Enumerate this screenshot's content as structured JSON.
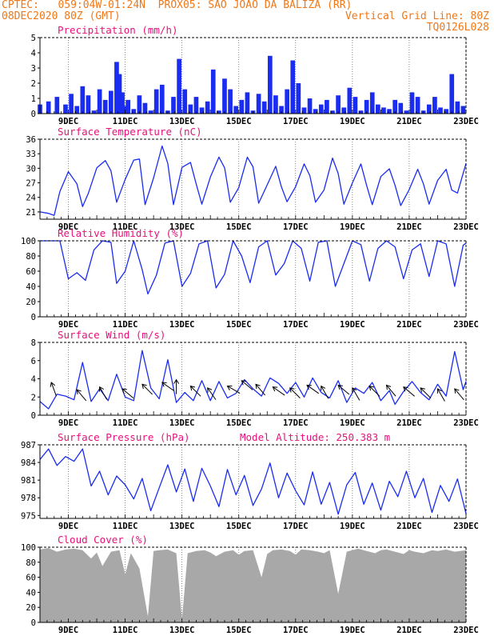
{
  "header": {
    "line1": "CPTEC:   059:04W-01:24N  PROX05: SAO JOAO DA BALIZA (RR)",
    "line2_left": "08DEC2020 80Z (GMT)",
    "line2_right": "Vertical Grid Line: 80Z",
    "line3_right": "TQ0126L028"
  },
  "colors": {
    "header": "#f07818",
    "title": "#e8107a",
    "series": "#1a2cf0",
    "cloud": "#a8a8a8"
  },
  "chart_data": [
    {
      "id": "precip",
      "type": "bar",
      "title": "Precipitation (mm/h)",
      "x_ticks": [
        "9DEC",
        "11DEC",
        "13DEC",
        "15DEC",
        "17DEC",
        "19DEC",
        "21DEC",
        "23DEC"
      ],
      "ylim": [
        0,
        5
      ],
      "yticks": [
        0,
        1,
        2,
        3,
        4,
        5
      ],
      "x_days": [
        0.0,
        0.3,
        0.6,
        0.9,
        1.1,
        1.3,
        1.5,
        1.7,
        1.9,
        2.1,
        2.3,
        2.5,
        2.7,
        2.8,
        2.9,
        3.0,
        3.1,
        3.3,
        3.5,
        3.7,
        3.9,
        4.1,
        4.3,
        4.5,
        4.7,
        4.9,
        5.1,
        5.3,
        5.5,
        5.7,
        5.9,
        6.1,
        6.3,
        6.5,
        6.7,
        6.9,
        7.1,
        7.3,
        7.5,
        7.7,
        7.9,
        8.1,
        8.3,
        8.5,
        8.7,
        8.9,
        9.1,
        9.3,
        9.5,
        9.7,
        9.9,
        10.1,
        10.3,
        10.5,
        10.7,
        10.9,
        11.1,
        11.3,
        11.5,
        11.7,
        11.9,
        12.1,
        12.3,
        12.5,
        12.7,
        12.9,
        13.1,
        13.3,
        13.5,
        13.7,
        13.9,
        14.1,
        14.3,
        14.5,
        14.7,
        14.9
      ],
      "values": [
        0.6,
        0.8,
        1.1,
        0.6,
        1.3,
        0.5,
        1.8,
        1.2,
        0.2,
        1.6,
        0.9,
        1.5,
        3.4,
        2.6,
        1.4,
        0.5,
        0.9,
        0.3,
        1.2,
        0.7,
        0.2,
        1.6,
        1.9,
        0.2,
        1.1,
        3.6,
        1.6,
        0.6,
        1.1,
        0.4,
        0.8,
        2.9,
        0.2,
        2.3,
        1.6,
        0.5,
        0.9,
        1.4,
        0.2,
        1.3,
        0.8,
        3.8,
        1.2,
        0.5,
        1.6,
        3.5,
        2.0,
        0.4,
        1.0,
        0.3,
        0.6,
        0.9,
        0.2,
        1.2,
        0.4,
        1.7,
        1.1,
        0.2,
        0.9,
        1.4,
        0.6,
        0.4,
        0.3,
        0.9,
        0.7,
        0.2,
        1.4,
        1.1,
        0.2,
        0.6,
        1.1,
        0.4,
        0.3,
        2.6,
        0.8,
        0.5
      ]
    },
    {
      "id": "temp",
      "type": "line",
      "title": "Surface Temperature (nC)",
      "x_ticks": [
        "9DEC",
        "11DEC",
        "13DEC",
        "15DEC",
        "17DEC",
        "19DEC",
        "21DEC",
        "23DEC"
      ],
      "ylim": [
        19.5,
        36
      ],
      "yticks": [
        21,
        24,
        27,
        30,
        33,
        36
      ],
      "x_days": [
        0.0,
        0.3,
        0.5,
        0.7,
        1.0,
        1.3,
        1.5,
        1.7,
        2.0,
        2.3,
        2.5,
        2.7,
        3.0,
        3.3,
        3.5,
        3.7,
        4.0,
        4.3,
        4.5,
        4.7,
        5.0,
        5.3,
        5.5,
        5.7,
        6.0,
        6.3,
        6.5,
        6.7,
        7.0,
        7.3,
        7.5,
        7.7,
        8.0,
        8.3,
        8.5,
        8.7,
        9.0,
        9.3,
        9.5,
        9.7,
        10.0,
        10.3,
        10.5,
        10.7,
        11.0,
        11.3,
        11.5,
        11.7,
        12.0,
        12.3,
        12.5,
        12.7,
        13.0,
        13.3,
        13.5,
        13.7,
        14.0,
        14.3,
        14.5,
        14.7,
        15.0
      ],
      "values": [
        21.0,
        20.7,
        20.3,
        25.2,
        29.3,
        26.8,
        22.1,
        24.8,
        30.1,
        31.6,
        29.5,
        23.0,
        27.7,
        31.7,
        31.9,
        22.5,
        28.0,
        34.6,
        31.0,
        22.5,
        30.2,
        31.2,
        26.8,
        22.6,
        28.2,
        32.3,
        30.1,
        23.0,
        26.0,
        32.3,
        30.3,
        22.8,
        26.6,
        30.4,
        26.2,
        23.1,
        26.2,
        30.9,
        28.5,
        23.0,
        25.5,
        32.1,
        28.9,
        22.6,
        27.0,
        30.9,
        26.5,
        22.5,
        28.3,
        29.9,
        26.5,
        22.3,
        25.6,
        29.8,
        26.8,
        22.6,
        27.5,
        29.8,
        25.5,
        24.9,
        31.0
      ]
    },
    {
      "id": "rh",
      "type": "line",
      "title": "Relative Humidity (%)",
      "x_ticks": [
        "9DEC",
        "11DEC",
        "13DEC",
        "15DEC",
        "17DEC",
        "19DEC",
        "21DEC",
        "23DEC"
      ],
      "ylim": [
        0,
        100
      ],
      "yticks": [
        0,
        20,
        40,
        60,
        80,
        100
      ],
      "x_days": [
        0.0,
        0.4,
        0.7,
        1.0,
        1.3,
        1.6,
        1.9,
        2.2,
        2.5,
        2.7,
        3.0,
        3.3,
        3.6,
        3.8,
        4.1,
        4.4,
        4.7,
        5.0,
        5.3,
        5.6,
        5.9,
        6.2,
        6.5,
        6.8,
        7.1,
        7.4,
        7.7,
        8.0,
        8.3,
        8.6,
        8.9,
        9.2,
        9.5,
        9.8,
        10.1,
        10.4,
        10.7,
        11.0,
        11.3,
        11.6,
        11.9,
        12.2,
        12.5,
        12.8,
        13.1,
        13.4,
        13.7,
        14.0,
        14.3,
        14.6,
        14.9,
        15.0
      ],
      "values": [
        100,
        100,
        100,
        50,
        58,
        48,
        88,
        100,
        98,
        44,
        60,
        100,
        62,
        30,
        55,
        97,
        100,
        40,
        57,
        96,
        100,
        38,
        56,
        100,
        80,
        45,
        92,
        100,
        55,
        70,
        100,
        90,
        47,
        98,
        100,
        40,
        70,
        100,
        95,
        47,
        90,
        100,
        92,
        50,
        88,
        96,
        53,
        100,
        96,
        40,
        94,
        97
      ]
    },
    {
      "id": "wind",
      "type": "line",
      "title": "Surface Wind (m/s)",
      "x_ticks": [
        "9DEC",
        "11DEC",
        "13DEC",
        "15DEC",
        "17DEC",
        "19DEC",
        "21DEC",
        "23DEC"
      ],
      "ylim": [
        0,
        8
      ],
      "yticks": [
        0,
        2,
        4,
        6,
        8
      ],
      "x_days": [
        0.0,
        0.3,
        0.6,
        0.9,
        1.2,
        1.5,
        1.8,
        2.1,
        2.4,
        2.7,
        3.0,
        3.3,
        3.6,
        3.9,
        4.2,
        4.5,
        4.8,
        5.1,
        5.4,
        5.7,
        6.0,
        6.3,
        6.6,
        6.9,
        7.2,
        7.5,
        7.8,
        8.1,
        8.4,
        8.7,
        9.0,
        9.3,
        9.6,
        9.9,
        10.2,
        10.5,
        10.8,
        11.1,
        11.4,
        11.7,
        12.0,
        12.3,
        12.5,
        12.8,
        13.1,
        13.4,
        13.7,
        14.0,
        14.3,
        14.6,
        14.9,
        15.0
      ],
      "values": [
        1.5,
        0.7,
        2.3,
        2.1,
        1.7,
        5.8,
        1.5,
        2.9,
        1.6,
        4.5,
        2.0,
        1.6,
        7.1,
        3.0,
        1.8,
        6.1,
        1.4,
        2.5,
        1.6,
        3.8,
        1.6,
        3.7,
        1.9,
        2.4,
        3.9,
        2.9,
        2.1,
        4.1,
        3.5,
        2.4,
        3.6,
        2.0,
        4.1,
        2.5,
        1.9,
        3.8,
        1.4,
        3.0,
        2.4,
        3.6,
        1.6,
        2.7,
        1.2,
        2.6,
        3.7,
        2.5,
        1.7,
        3.4,
        2.1,
        7.0,
        2.8,
        3.7
      ],
      "arrows": [
        [
          0.4,
          3.6,
          -70
        ],
        [
          1.3,
          2.8,
          -50
        ],
        [
          2.1,
          3.1,
          -60
        ],
        [
          2.9,
          2.9,
          -40
        ],
        [
          3.6,
          3.4,
          -45
        ],
        [
          4.3,
          3.6,
          -35
        ],
        [
          4.8,
          3.9,
          -90
        ],
        [
          5.3,
          3.2,
          -45
        ],
        [
          5.9,
          3.0,
          -55
        ],
        [
          6.6,
          3.2,
          -30
        ],
        [
          7.1,
          3.8,
          -40
        ],
        [
          7.6,
          3.4,
          -50
        ],
        [
          8.2,
          3.1,
          -35
        ],
        [
          8.8,
          3.0,
          -45
        ],
        [
          9.4,
          3.3,
          -35
        ],
        [
          9.9,
          3.2,
          -60
        ],
        [
          10.5,
          3.3,
          -40
        ],
        [
          11.0,
          3.0,
          -60
        ],
        [
          11.6,
          3.2,
          -45
        ],
        [
          12.2,
          3.3,
          -50
        ],
        [
          12.8,
          3.1,
          -40
        ],
        [
          13.4,
          3.0,
          -45
        ],
        [
          14.0,
          2.9,
          -60
        ],
        [
          14.6,
          2.9,
          -50
        ]
      ]
    },
    {
      "id": "pres",
      "type": "line",
      "title": "Surface Pressure (hPa)",
      "annotation": "Model Altitude: 250.383 m",
      "x_ticks": [
        "9DEC",
        "11DEC",
        "13DEC",
        "15DEC",
        "17DEC",
        "19DEC",
        "21DEC",
        "23DEC"
      ],
      "ylim": [
        974.5,
        987
      ],
      "yticks": [
        975,
        978,
        981,
        984,
        987
      ],
      "x_days": [
        0.0,
        0.3,
        0.6,
        0.9,
        1.2,
        1.5,
        1.8,
        2.1,
        2.4,
        2.7,
        3.0,
        3.3,
        3.6,
        3.9,
        4.2,
        4.5,
        4.8,
        5.1,
        5.4,
        5.7,
        6.0,
        6.3,
        6.6,
        6.9,
        7.2,
        7.5,
        7.8,
        8.1,
        8.4,
        8.7,
        9.0,
        9.3,
        9.6,
        9.9,
        10.2,
        10.5,
        10.8,
        11.1,
        11.4,
        11.7,
        12.0,
        12.3,
        12.6,
        12.9,
        13.2,
        13.5,
        13.8,
        14.1,
        14.4,
        14.7,
        15.0
      ],
      "values": [
        984.5,
        986.3,
        983.5,
        985.0,
        984.2,
        986.3,
        980.0,
        982.5,
        978.5,
        981.7,
        980.2,
        977.8,
        981.3,
        975.8,
        979.7,
        983.6,
        979.0,
        982.9,
        977.4,
        983.0,
        980.0,
        976.5,
        982.8,
        978.5,
        981.8,
        976.7,
        979.5,
        983.9,
        978.0,
        982.2,
        979.2,
        976.8,
        982.4,
        976.9,
        980.6,
        975.2,
        980.2,
        982.3,
        976.9,
        980.5,
        975.9,
        980.8,
        978.2,
        982.5,
        978.0,
        981.3,
        975.5,
        980.1,
        977.4,
        981.2,
        975.3
      ]
    },
    {
      "id": "cloud",
      "type": "area",
      "title": "Cloud Cover (%)",
      "x_ticks": [
        "9DEC",
        "11DEC",
        "13DEC",
        "15DEC",
        "17DEC",
        "19DEC",
        "21DEC",
        "23DEC"
      ],
      "ylim": [
        0,
        100
      ],
      "yticks": [
        0,
        20,
        40,
        60,
        80,
        100
      ],
      "x_days": [
        0.0,
        0.3,
        0.6,
        0.9,
        1.2,
        1.5,
        1.8,
        2.0,
        2.2,
        2.5,
        2.8,
        3.0,
        3.2,
        3.5,
        3.8,
        4.0,
        4.2,
        4.5,
        4.8,
        5.0,
        5.2,
        5.5,
        5.8,
        6.0,
        6.2,
        6.5,
        6.8,
        7.0,
        7.2,
        7.5,
        7.8,
        8.0,
        8.2,
        8.5,
        8.8,
        9.0,
        9.2,
        9.5,
        9.8,
        10.0,
        10.2,
        10.5,
        10.8,
        11.0,
        11.2,
        11.5,
        11.8,
        12.0,
        12.2,
        12.5,
        12.8,
        13.0,
        13.2,
        13.5,
        13.8,
        14.0,
        14.3,
        14.6,
        15.0
      ],
      "values": [
        97,
        99,
        94,
        97,
        98,
        96,
        85,
        93,
        75,
        94,
        96,
        64,
        92,
        72,
        8,
        95,
        96,
        97,
        92,
        4,
        92,
        95,
        96,
        93,
        88,
        94,
        96,
        90,
        95,
        96,
        60,
        91,
        96,
        97,
        95,
        90,
        97,
        96,
        94,
        92,
        96,
        38,
        94,
        96,
        98,
        95,
        92,
        96,
        97,
        94,
        91,
        96,
        94,
        92,
        96,
        95,
        97,
        94,
        96
      ]
    }
  ]
}
